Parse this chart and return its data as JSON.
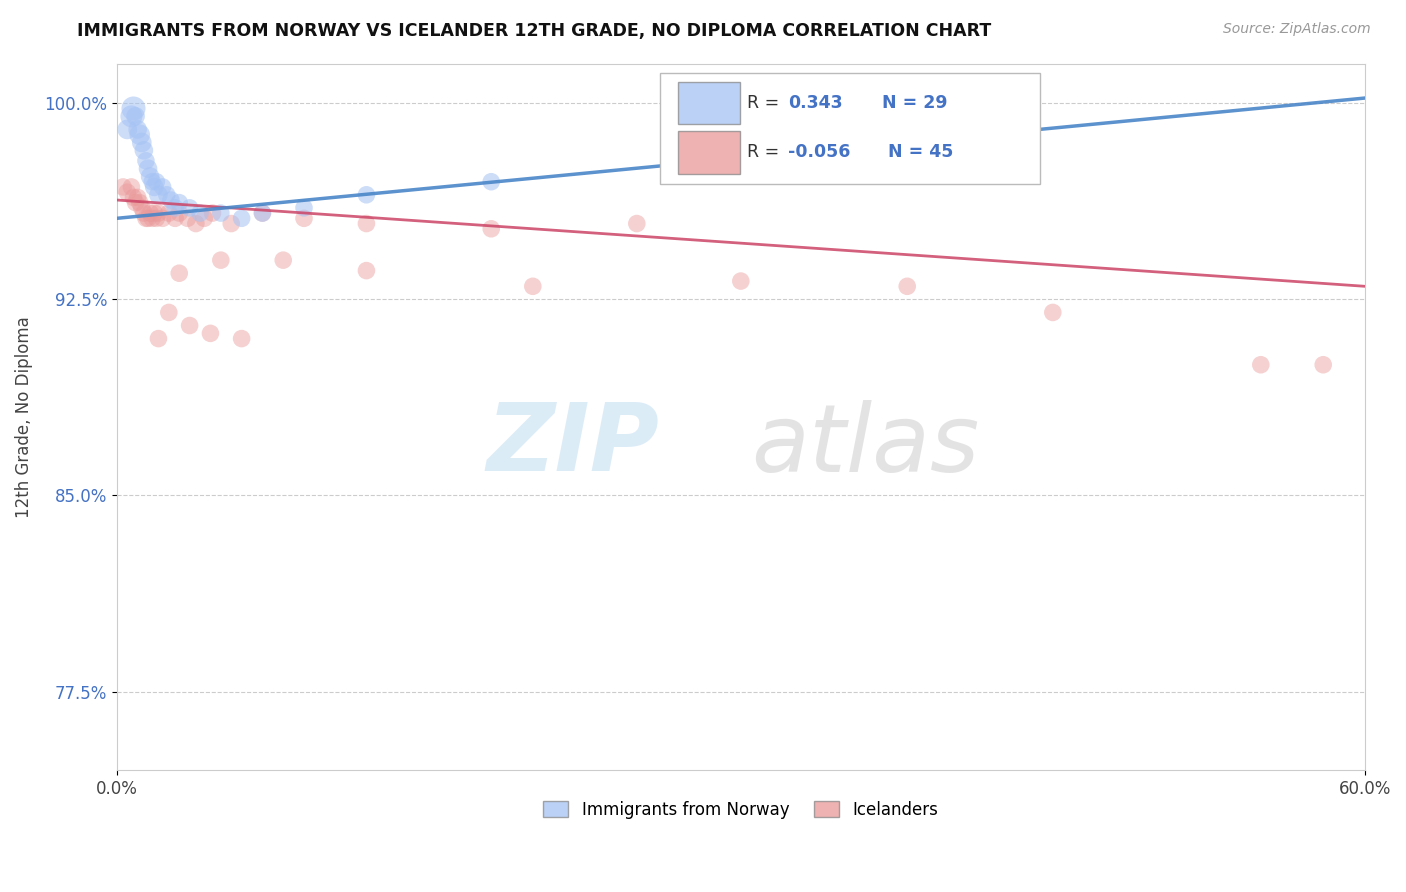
{
  "title": "IMMIGRANTS FROM NORWAY VS ICELANDER 12TH GRADE, NO DIPLOMA CORRELATION CHART",
  "source": "Source: ZipAtlas.com",
  "ylabel": "12th Grade, No Diploma",
  "xmin": 0.0,
  "xmax": 0.6,
  "ymin": 0.745,
  "ymax": 1.015,
  "yticks": [
    0.775,
    0.85,
    0.925,
    1.0
  ],
  "ytick_labels": [
    "77.5%",
    "85.0%",
    "92.5%",
    "100.0%"
  ],
  "norway_R": 0.343,
  "norway_N": 29,
  "iceland_R": -0.056,
  "iceland_N": 45,
  "norway_color": "#a4c2f4",
  "iceland_color": "#ea9999",
  "norway_trend_color": "#4a86c8",
  "iceland_trend_color": "#cc4466",
  "legend_label_norway": "Immigrants from Norway",
  "legend_label_iceland": "Icelanders",
  "norway_x": [
    0.005,
    0.007,
    0.008,
    0.009,
    0.01,
    0.011,
    0.012,
    0.013,
    0.014,
    0.015,
    0.016,
    0.017,
    0.018,
    0.019,
    0.02,
    0.022,
    0.024,
    0.026,
    0.028,
    0.03,
    0.035,
    0.04,
    0.05,
    0.06,
    0.07,
    0.09,
    0.12,
    0.18,
    0.28
  ],
  "norway_y": [
    0.99,
    0.995,
    0.998,
    0.995,
    0.99,
    0.988,
    0.985,
    0.982,
    0.978,
    0.975,
    0.972,
    0.97,
    0.968,
    0.97,
    0.965,
    0.968,
    0.965,
    0.963,
    0.96,
    0.962,
    0.96,
    0.958,
    0.958,
    0.956,
    0.958,
    0.96,
    0.965,
    0.97,
    0.975
  ],
  "norway_sizes": [
    200,
    250,
    300,
    180,
    180,
    220,
    200,
    180,
    160,
    180,
    180,
    160,
    180,
    160,
    180,
    160,
    160,
    160,
    160,
    160,
    160,
    160,
    160,
    160,
    160,
    160,
    160,
    160,
    160
  ],
  "iceland_x": [
    0.003,
    0.005,
    0.007,
    0.008,
    0.009,
    0.01,
    0.011,
    0.012,
    0.013,
    0.014,
    0.015,
    0.016,
    0.017,
    0.018,
    0.019,
    0.02,
    0.022,
    0.025,
    0.028,
    0.03,
    0.034,
    0.038,
    0.042,
    0.046,
    0.055,
    0.07,
    0.09,
    0.12,
    0.18,
    0.25,
    0.03,
    0.05,
    0.08,
    0.12,
    0.2,
    0.3,
    0.38,
    0.45,
    0.55,
    0.58,
    0.02,
    0.025,
    0.035,
    0.045,
    0.06
  ],
  "iceland_y": [
    0.968,
    0.966,
    0.968,
    0.964,
    0.962,
    0.964,
    0.962,
    0.96,
    0.958,
    0.956,
    0.956,
    0.958,
    0.956,
    0.958,
    0.956,
    0.958,
    0.956,
    0.958,
    0.956,
    0.958,
    0.956,
    0.954,
    0.956,
    0.958,
    0.954,
    0.958,
    0.956,
    0.954,
    0.952,
    0.954,
    0.935,
    0.94,
    0.94,
    0.936,
    0.93,
    0.932,
    0.93,
    0.92,
    0.9,
    0.9,
    0.91,
    0.92,
    0.915,
    0.912,
    0.91
  ],
  "iceland_sizes": [
    160,
    160,
    160,
    160,
    160,
    160,
    160,
    160,
    160,
    160,
    160,
    160,
    160,
    160,
    160,
    160,
    160,
    160,
    160,
    160,
    160,
    160,
    160,
    160,
    160,
    160,
    160,
    160,
    160,
    160,
    160,
    160,
    160,
    160,
    160,
    160,
    160,
    160,
    160,
    160,
    160,
    160,
    160,
    160,
    160
  ],
  "background_color": "#ffffff",
  "grid_color": "#cccccc"
}
